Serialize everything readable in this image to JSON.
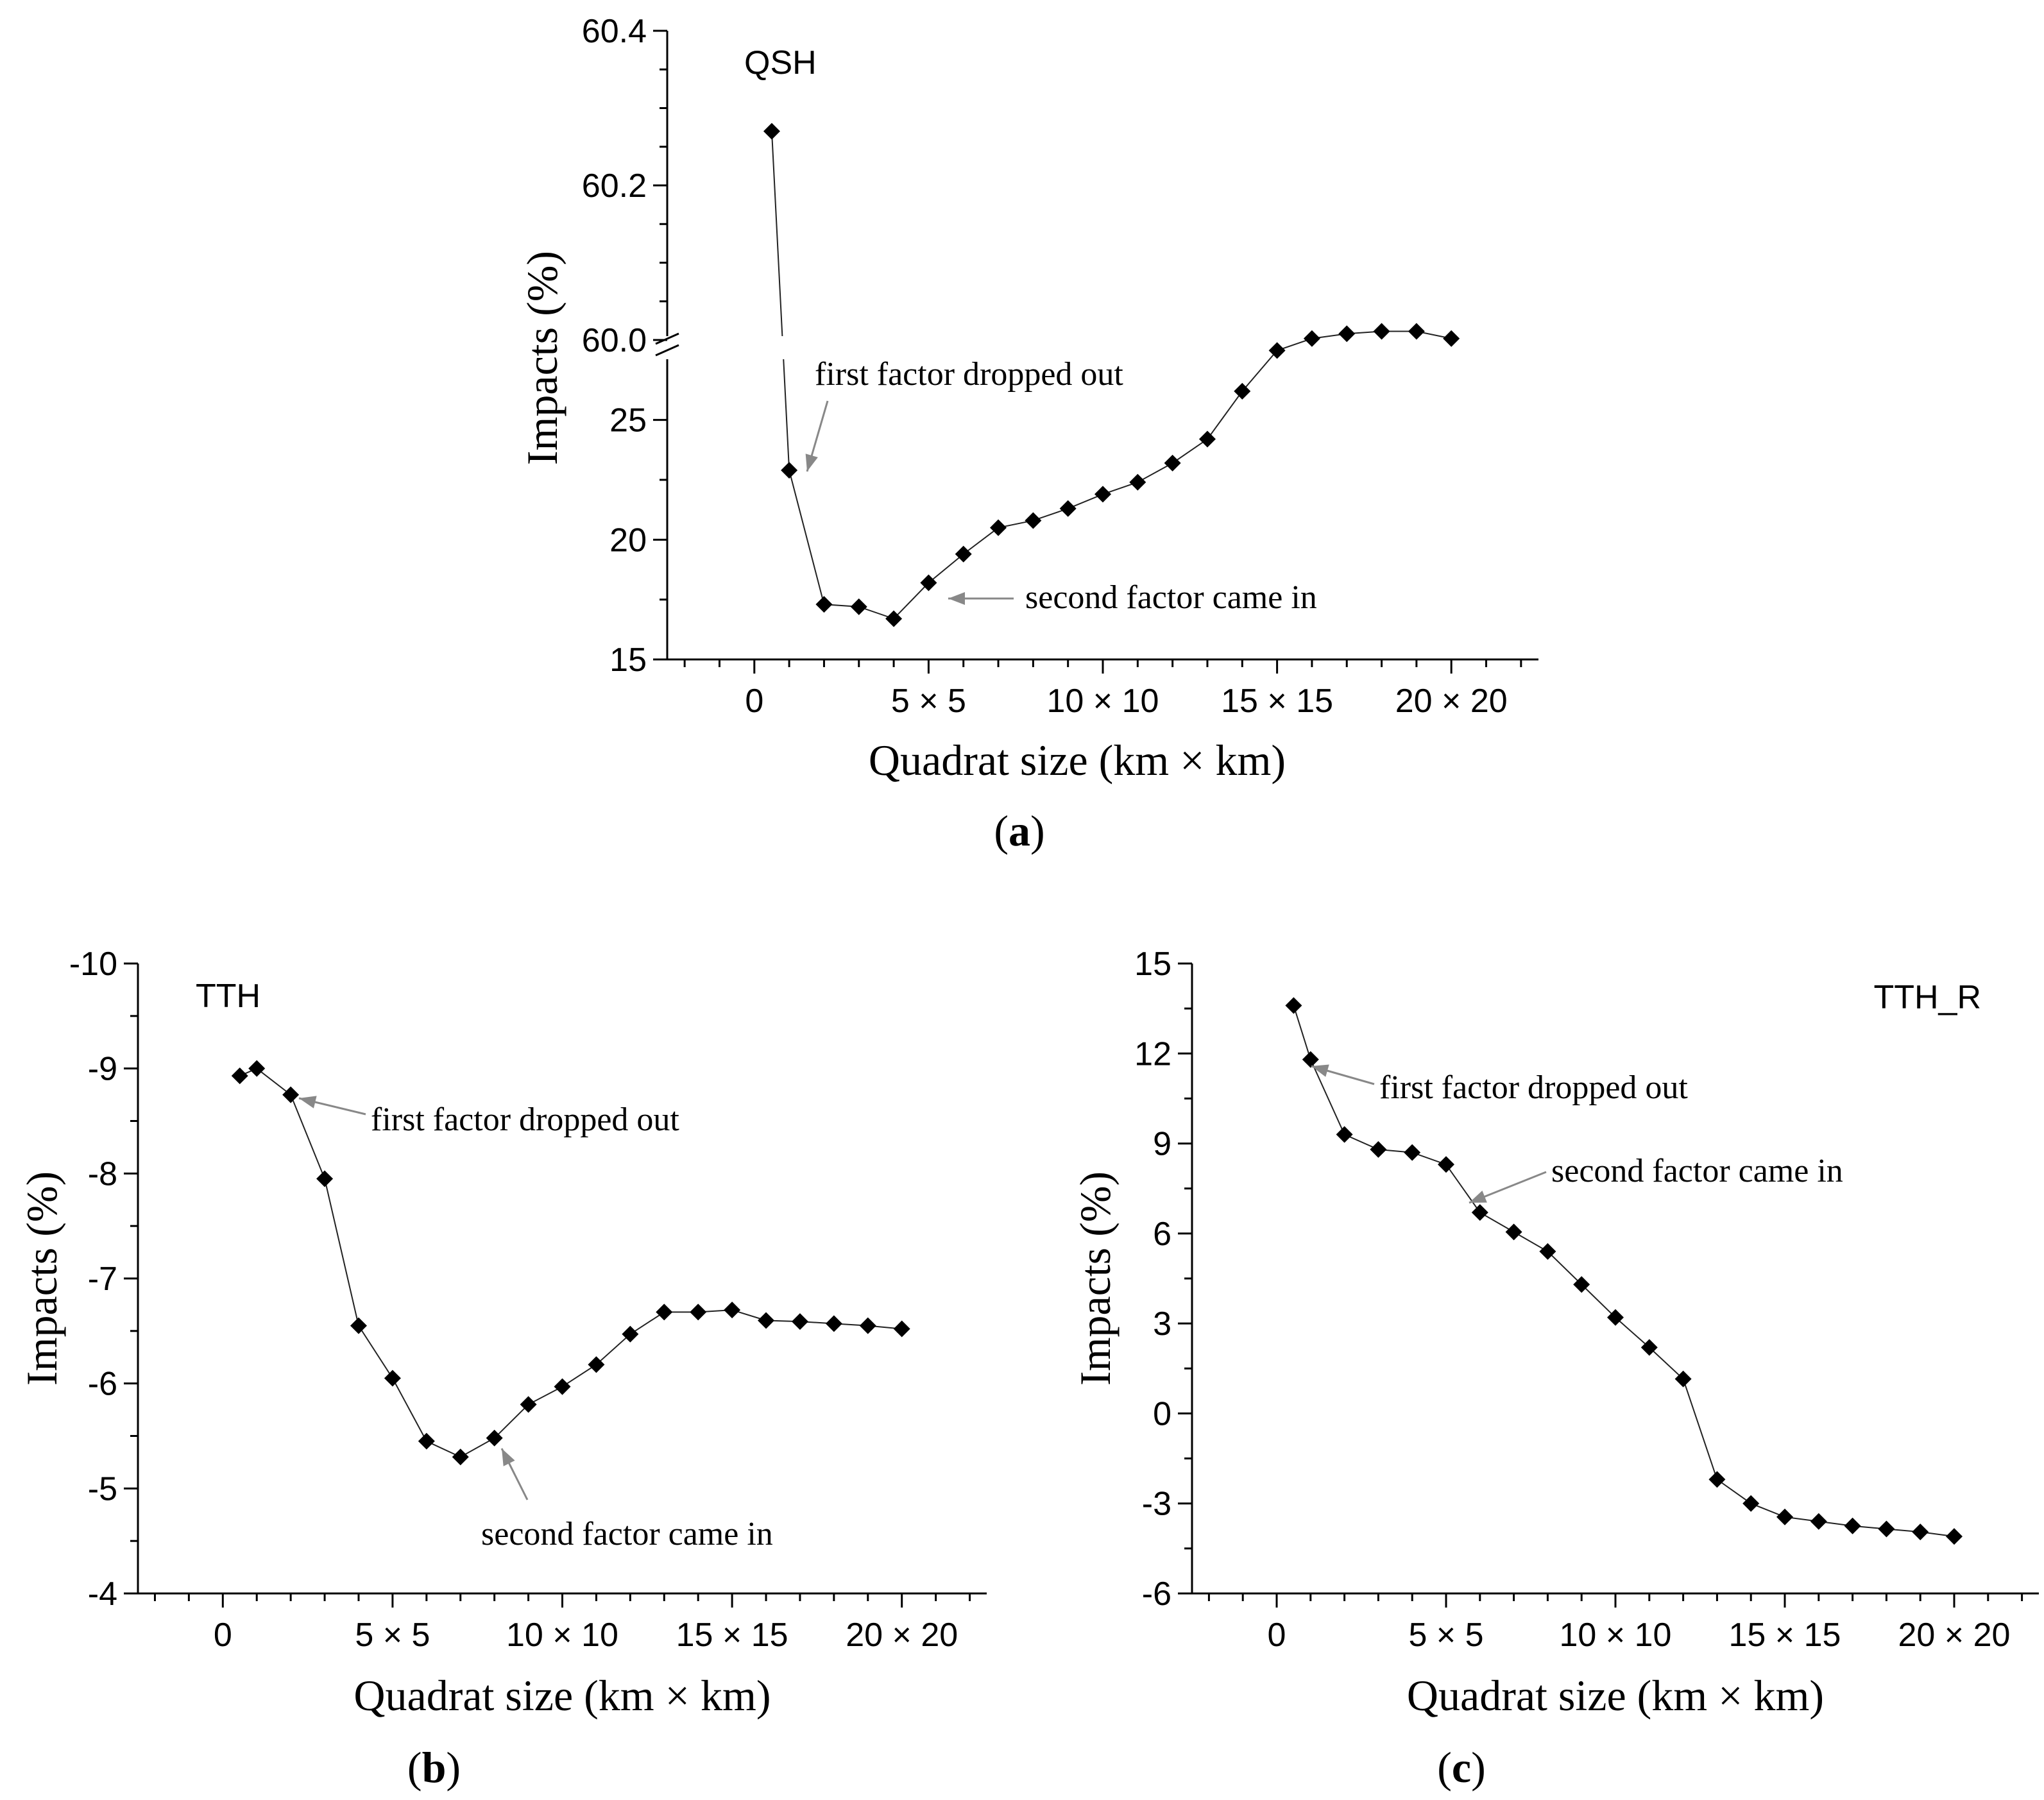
{
  "chart_data": [
    {
      "type": "line",
      "panel": "a",
      "tag": "QSH",
      "xlabel": "Quadrat size (km × km)",
      "ylabel": "Impacts (%)",
      "xlim": [
        -2.5,
        22.5
      ],
      "ylim_lower": [
        15,
        27
      ],
      "ylim_upper": [
        60.0,
        60.4
      ],
      "axis_break": true,
      "grid": false,
      "xticks": [
        0,
        5,
        10,
        15,
        20
      ],
      "xtick_labels": [
        "0",
        "5 × 5",
        "10 × 10",
        "15 × 15",
        "20 × 20"
      ],
      "yticks_lower": [
        15,
        20,
        25
      ],
      "ytick_labels_lower": [
        "15",
        "20",
        "25"
      ],
      "yticks_upper": [
        60.0,
        60.2,
        60.4
      ],
      "ytick_labels_upper": [
        "60.0",
        "60.2",
        "60.4"
      ],
      "x": [
        0.5,
        1,
        2,
        3,
        4,
        5,
        6,
        7,
        8,
        9,
        10,
        11,
        12,
        13,
        14,
        15,
        16,
        17,
        18,
        19,
        20
      ],
      "values": [
        60.27,
        22.9,
        17.3,
        17.2,
        16.7,
        18.2,
        19.4,
        20.5,
        20.8,
        21.3,
        21.9,
        22.4,
        23.2,
        24.2,
        26.2,
        27.9,
        28.4,
        28.6,
        28.7,
        28.7,
        28.4
      ],
      "annotations": [
        {
          "text": "first factor dropped out",
          "x": 1,
          "y": 22.9
        },
        {
          "text": "second factor came in",
          "x": 5,
          "y": 18.2
        }
      ],
      "caption_open": "(",
      "caption_letter": "a",
      "caption_close": ")"
    },
    {
      "type": "line",
      "panel": "b",
      "tag": "TTH",
      "xlabel": "Quadrat size (km × km)",
      "ylabel": "Impacts (%)",
      "xlim": [
        -2.5,
        22.5
      ],
      "ylim": [
        -4,
        -10
      ],
      "y_inverted": true,
      "grid": false,
      "xticks": [
        0,
        5,
        10,
        15,
        20
      ],
      "xtick_labels": [
        "0",
        "5 × 5",
        "10 × 10",
        "15 × 15",
        "20 × 20"
      ],
      "yticks": [
        -10,
        -9,
        -8,
        -7,
        -6,
        -5,
        -4
      ],
      "ytick_labels": [
        "-10",
        "-9",
        "-8",
        "-7",
        "-6",
        "-5",
        "-4"
      ],
      "x": [
        0.5,
        1,
        2,
        3,
        4,
        5,
        6,
        7,
        8,
        9,
        10,
        11,
        12,
        13,
        14,
        15,
        16,
        17,
        18,
        19,
        20
      ],
      "values": [
        -8.93,
        -9.0,
        -8.75,
        -7.95,
        -6.55,
        -6.05,
        -5.45,
        -5.3,
        -5.48,
        -5.8,
        -5.97,
        -6.18,
        -6.47,
        -6.68,
        -6.68,
        -6.7,
        -6.6,
        -6.59,
        -6.57,
        -6.55,
        -6.52
      ],
      "annotations": [
        {
          "text": "first factor dropped out",
          "x": 2,
          "y": -8.75
        },
        {
          "text": "second factor came in",
          "x": 8,
          "y": -5.48
        }
      ],
      "caption_open": "(",
      "caption_letter": "b",
      "caption_close": ")"
    },
    {
      "type": "line",
      "panel": "c",
      "tag": "TTH_R",
      "xlabel": "Quadrat size (km × km)",
      "ylabel": "Impacts (%)",
      "xlim": [
        -2.5,
        22.5
      ],
      "ylim": [
        -6,
        15
      ],
      "grid": false,
      "xticks": [
        0,
        5,
        10,
        15,
        20
      ],
      "xtick_labels": [
        "0",
        "5 × 5",
        "10 × 10",
        "15 × 15",
        "20 × 20"
      ],
      "yticks": [
        -6,
        -3,
        0,
        3,
        6,
        9,
        12,
        15
      ],
      "ytick_labels": [
        "-6",
        "-3",
        "0",
        "3",
        "6",
        "9",
        "12",
        "15"
      ],
      "x": [
        0.5,
        1,
        2,
        3,
        4,
        5,
        6,
        7,
        8,
        9,
        10,
        11,
        12,
        13,
        14,
        15,
        16,
        17,
        18,
        19,
        20
      ],
      "values": [
        13.6,
        11.8,
        9.3,
        8.8,
        8.7,
        8.3,
        6.7,
        6.05,
        5.4,
        4.3,
        3.2,
        2.2,
        1.15,
        -2.2,
        -3.0,
        -3.45,
        -3.6,
        -3.75,
        -3.85,
        -3.95,
        -4.1
      ],
      "annotations": [
        {
          "text": "first factor dropped out",
          "x": 1,
          "y": 11.8
        },
        {
          "text": "second factor came in",
          "x": 6,
          "y": 6.7
        }
      ],
      "caption_open": "(",
      "caption_letter": "c",
      "caption_close": ")"
    }
  ]
}
